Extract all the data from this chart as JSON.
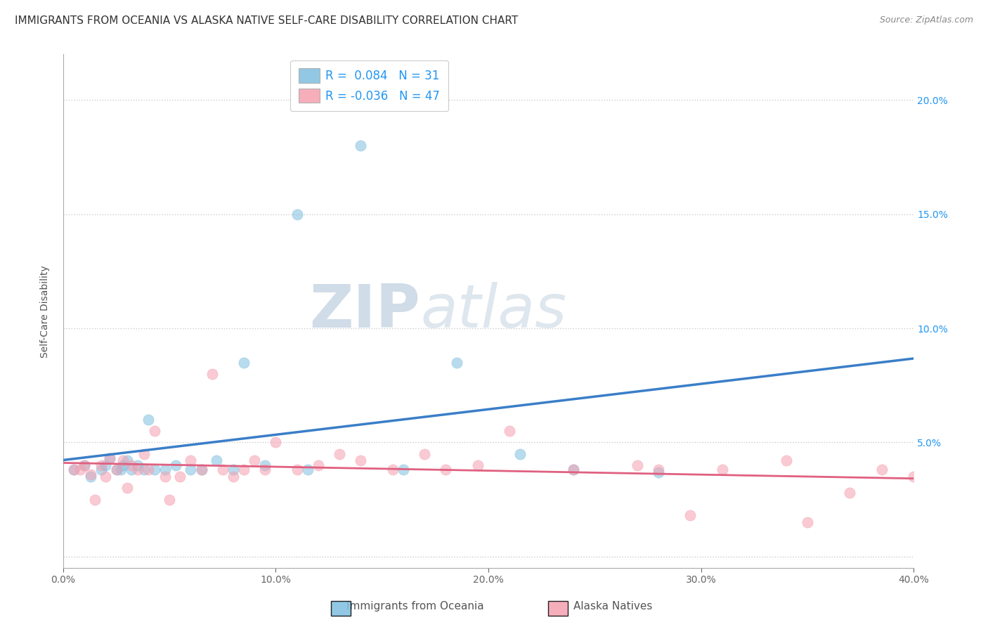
{
  "title": "IMMIGRANTS FROM OCEANIA VS ALASKA NATIVE SELF-CARE DISABILITY CORRELATION CHART",
  "source": "Source: ZipAtlas.com",
  "xlabel": "",
  "ylabel": "Self-Care Disability",
  "xlim": [
    0.0,
    0.4
  ],
  "ylim": [
    -0.005,
    0.22
  ],
  "xticks": [
    0.0,
    0.1,
    0.2,
    0.3,
    0.4
  ],
  "xtick_labels": [
    "0.0%",
    "10.0%",
    "20.0%",
    "30.0%",
    "40.0%"
  ],
  "yticks": [
    0.0,
    0.05,
    0.1,
    0.15,
    0.2
  ],
  "ytick_labels_left": [
    "",
    "",
    "",
    "",
    ""
  ],
  "ytick_labels_right": [
    "",
    "5.0%",
    "10.0%",
    "15.0%",
    "20.0%"
  ],
  "blue_R": 0.084,
  "blue_N": 31,
  "pink_R": -0.036,
  "pink_N": 47,
  "blue_color": "#7fbfdf",
  "pink_color": "#f5a0b0",
  "blue_line_color": "#3a7ec8",
  "pink_line_color": "#e06080",
  "legend_label_blue": "Immigrants from Oceania",
  "legend_label_pink": "Alaska Natives",
  "blue_scatter_x": [
    0.005,
    0.01,
    0.013,
    0.018,
    0.02,
    0.022,
    0.025,
    0.027,
    0.028,
    0.03,
    0.032,
    0.035,
    0.038,
    0.04,
    0.043,
    0.048,
    0.053,
    0.06,
    0.065,
    0.072,
    0.08,
    0.085,
    0.095,
    0.11,
    0.115,
    0.14,
    0.16,
    0.185,
    0.215,
    0.24,
    0.28
  ],
  "blue_scatter_y": [
    0.038,
    0.04,
    0.035,
    0.038,
    0.04,
    0.043,
    0.038,
    0.038,
    0.04,
    0.042,
    0.038,
    0.04,
    0.038,
    0.06,
    0.038,
    0.038,
    0.04,
    0.038,
    0.038,
    0.042,
    0.038,
    0.085,
    0.04,
    0.15,
    0.038,
    0.18,
    0.038,
    0.085,
    0.045,
    0.038,
    0.037
  ],
  "pink_scatter_x": [
    0.005,
    0.008,
    0.01,
    0.013,
    0.015,
    0.018,
    0.02,
    0.022,
    0.025,
    0.028,
    0.03,
    0.032,
    0.035,
    0.038,
    0.04,
    0.043,
    0.048,
    0.05,
    0.055,
    0.06,
    0.065,
    0.07,
    0.075,
    0.08,
    0.085,
    0.09,
    0.095,
    0.1,
    0.11,
    0.12,
    0.13,
    0.14,
    0.155,
    0.17,
    0.18,
    0.195,
    0.21,
    0.24,
    0.27,
    0.28,
    0.295,
    0.31,
    0.34,
    0.35,
    0.37,
    0.385,
    0.4
  ],
  "pink_scatter_y": [
    0.038,
    0.038,
    0.04,
    0.036,
    0.025,
    0.04,
    0.035,
    0.043,
    0.038,
    0.042,
    0.03,
    0.04,
    0.038,
    0.045,
    0.038,
    0.055,
    0.035,
    0.025,
    0.035,
    0.042,
    0.038,
    0.08,
    0.038,
    0.035,
    0.038,
    0.042,
    0.038,
    0.05,
    0.038,
    0.04,
    0.045,
    0.042,
    0.038,
    0.045,
    0.038,
    0.04,
    0.055,
    0.038,
    0.04,
    0.038,
    0.018,
    0.038,
    0.042,
    0.015,
    0.028,
    0.038,
    0.035
  ],
  "background_color": "#ffffff",
  "grid_color": "#cccccc",
  "axis_color": "#aaaaaa",
  "title_fontsize": 11,
  "label_fontsize": 10,
  "tick_fontsize": 10,
  "legend_fontsize": 12,
  "right_tick_color": "#2196f3",
  "watermark_color": "#d0dce8"
}
